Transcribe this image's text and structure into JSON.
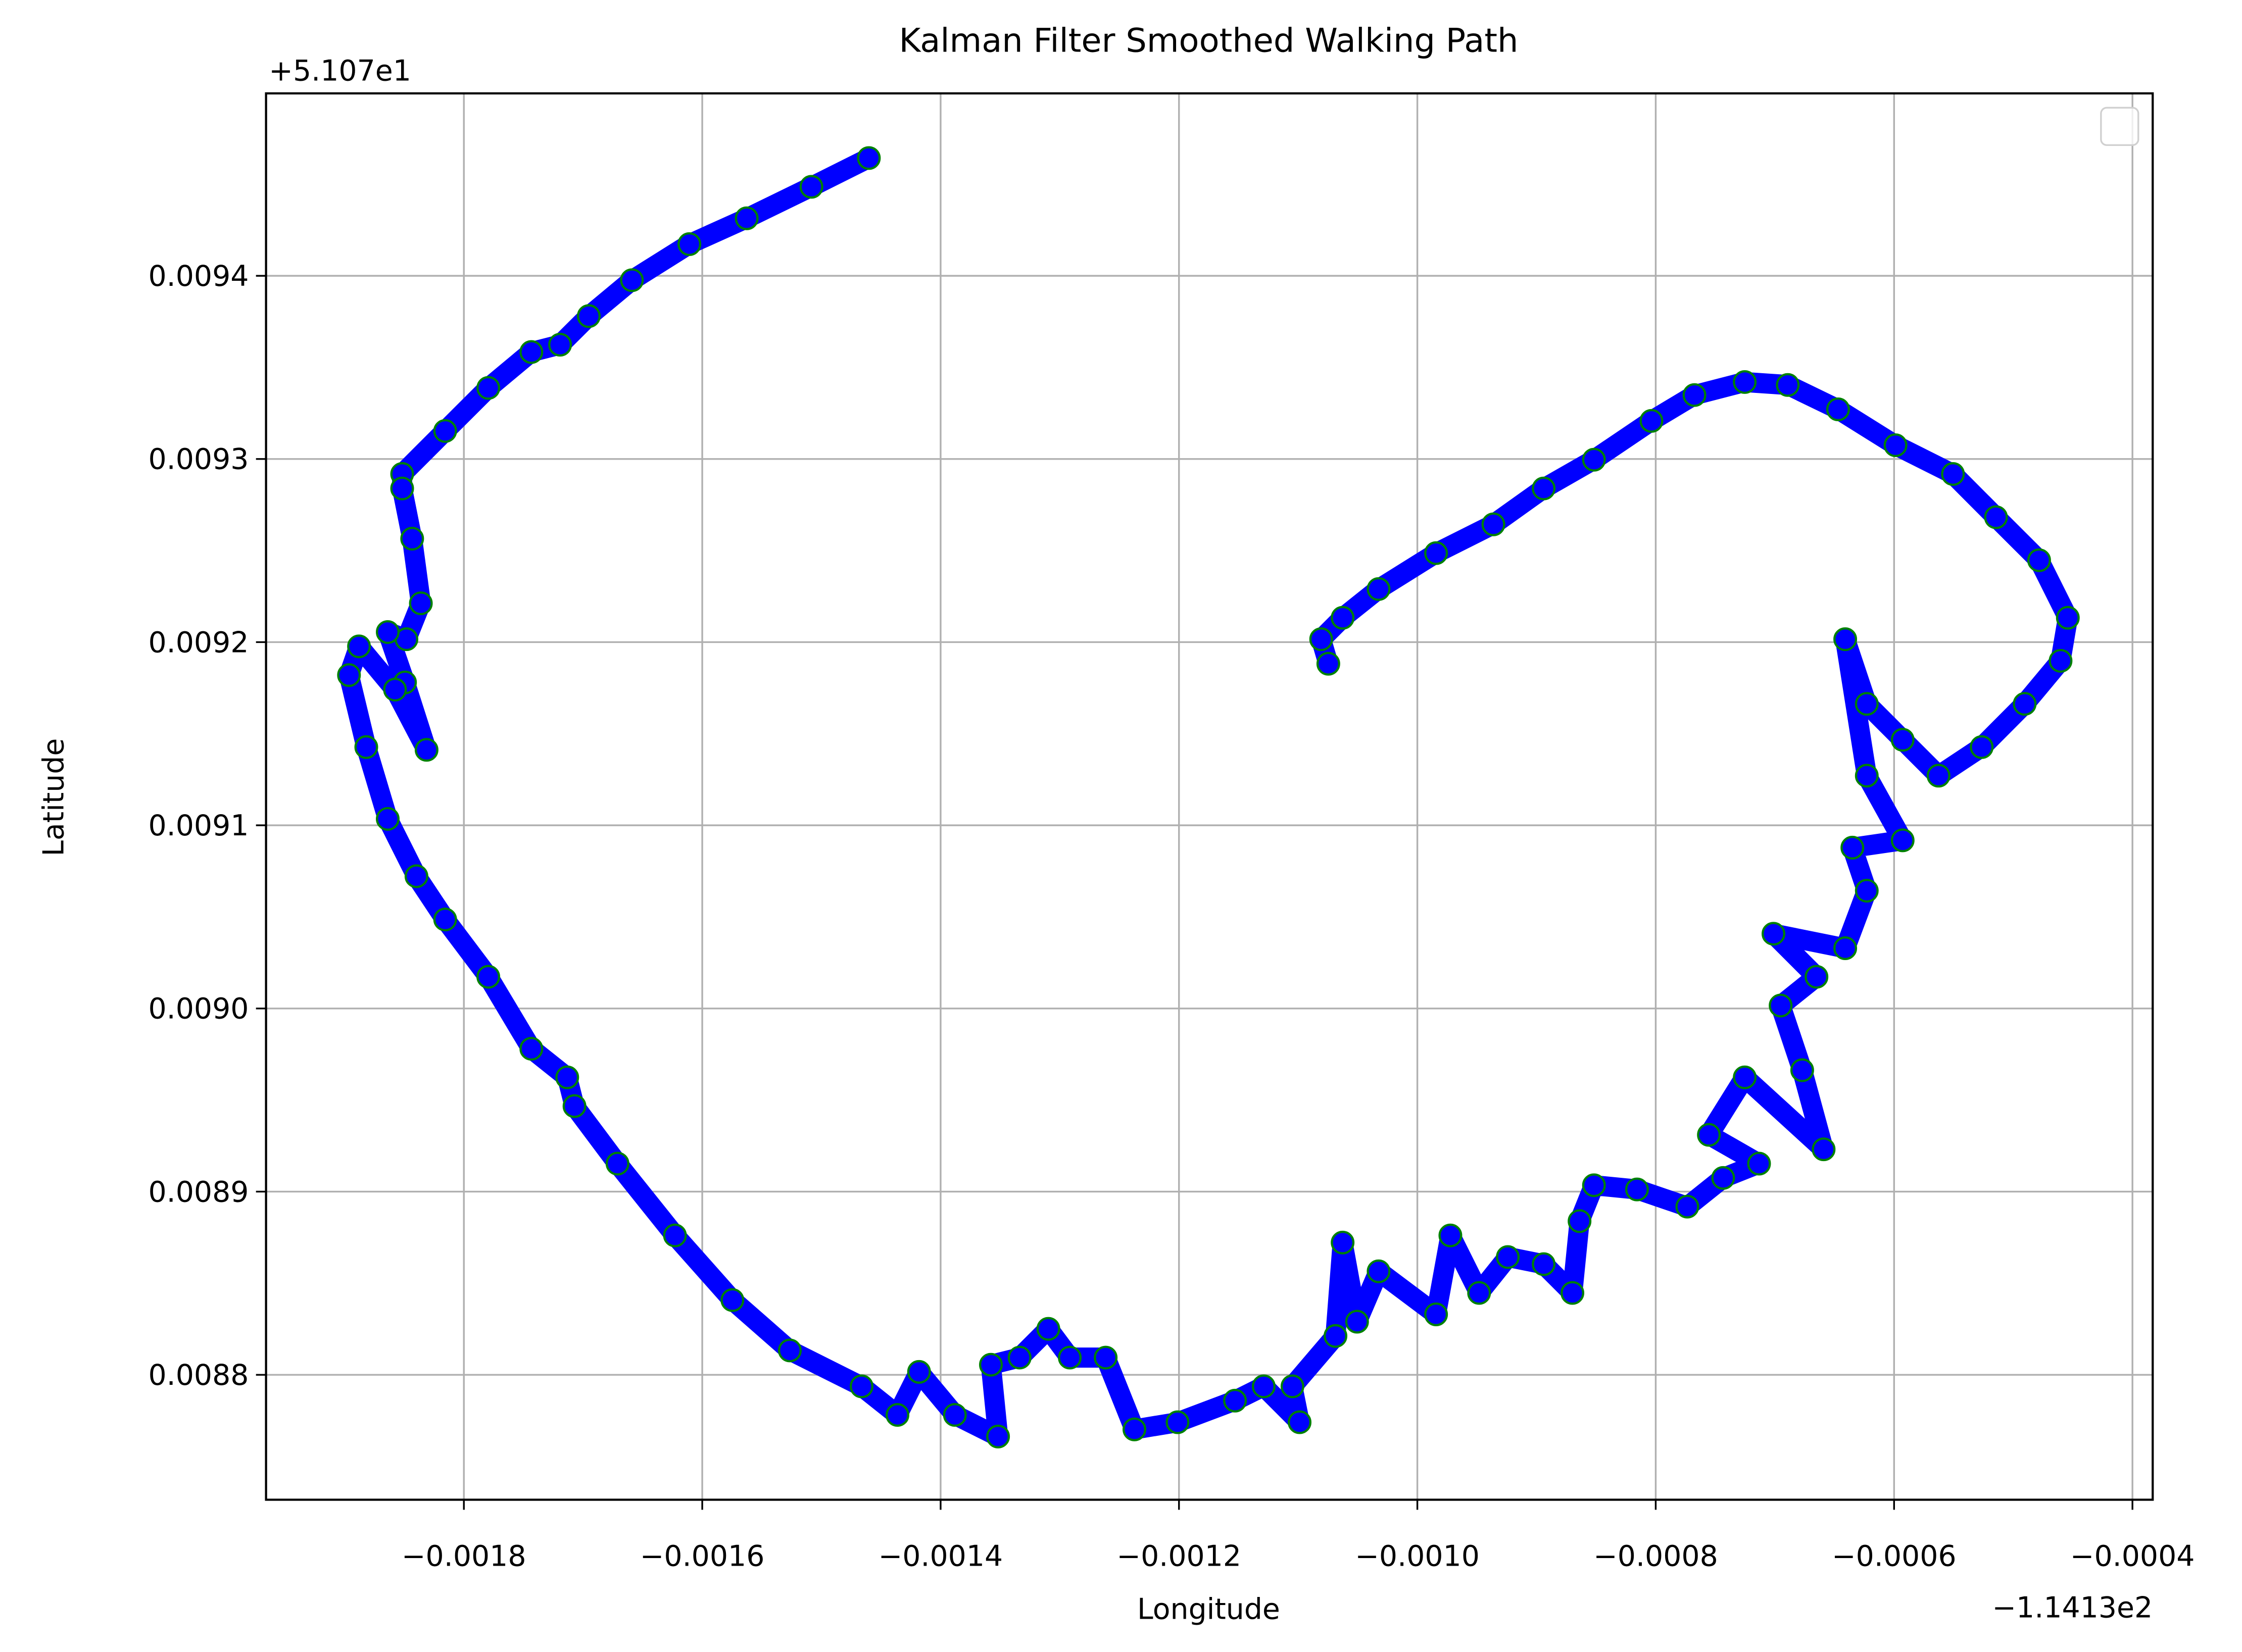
{
  "chart_data": {
    "type": "line",
    "title": "Kalman Filter Smoothed Walking Path",
    "x_label": "Longitude",
    "y_label": "Latitude",
    "x_offset_label": "−1.1413e2",
    "y_offset_label": "+5.107e1",
    "xlim": [
      -0.001966,
      -0.000383
    ],
    "ylim": [
      0.0087318,
      0.0094996
    ],
    "xticks": [
      {
        "value": -0.0018,
        "label": "−0.0018"
      },
      {
        "value": -0.0016,
        "label": "−0.0016"
      },
      {
        "value": -0.0014,
        "label": "−0.0014"
      },
      {
        "value": -0.0012,
        "label": "−0.0012"
      },
      {
        "value": -0.001,
        "label": "−0.0010"
      },
      {
        "value": -0.0008,
        "label": "−0.0008"
      },
      {
        "value": -0.0006,
        "label": "−0.0006"
      },
      {
        "value": -0.0004,
        "label": "−0.0004"
      }
    ],
    "yticks": [
      0.0088,
      0.0089,
      {
        "value": 0.009,
        "label": "0.0090"
      },
      0.0091,
      0.0092,
      0.0093,
      0.0094
    ],
    "grid": true,
    "legend": "upper right",
    "series": [
      {
        "color": "blue",
        "marker_edge_color": "green",
        "x": [
          -0.0014602,
          -0.0015084,
          -0.0015627,
          -0.0016108,
          -0.001659,
          -0.0016952,
          -0.0017193,
          -0.0017434,
          -0.0017795,
          -0.0018157,
          -0.0018518,
          -0.0018518,
          -0.0018434,
          -0.0018361,
          -0.0018482,
          -0.0018639,
          -0.0018494,
          -0.0018313,
          -0.0018578,
          -0.001888,
          -0.0018964,
          -0.0018819,
          -0.0018639,
          -0.0018398,
          -0.0018157,
          -0.0017795,
          -0.0017434,
          -0.0017133,
          -0.0017072,
          -0.0016711,
          -0.0016229,
          -0.0015747,
          -0.0015265,
          -0.0014663,
          -0.0014362,
          -0.0014181,
          -0.001388,
          -0.0013518,
          -0.0013578,
          -0.0013337,
          -0.0013096,
          -0.0012916,
          -0.0012615,
          -0.0012374,
          -0.0012012,
          -0.001153,
          -0.0011289,
          -0.0010988,
          -0.0011048,
          -0.0010687,
          -0.0010627,
          -0.0010506,
          -0.0010325,
          -0.0009843,
          -0.0009723,
          -0.0009482,
          -0.0009241,
          -0.000894,
          -0.0008699,
          -0.0008639,
          -0.0008518,
          -0.0008157,
          -0.0007735,
          -0.0007434,
          -0.0007133,
          -0.0007554,
          -0.0007253,
          -0.0006591,
          -0.0006771,
          -0.0006952,
          -0.0006651,
          -0.0007012,
          -0.000641,
          -0.0006229,
          -0.000635,
          -0.0005928,
          -0.0006229,
          -0.000641,
          -0.0006229,
          -0.0005928,
          -0.0005627,
          -0.0005265,
          -0.0004904,
          -0.0004603,
          -0.0004542,
          -0.0004783,
          -0.0005145,
          -0.0005506,
          -0.0005988,
          -0.000647,
          -0.0006892,
          -0.0007253,
          -0.0007675,
          -0.0008036,
          -0.0008518,
          -0.000894,
          -0.0009362,
          -0.0009843,
          -0.0010325,
          -0.0010627,
          -0.0010807,
          -0.0010747
        ],
        "values": [
          0.0094643,
          0.0094486,
          0.0094314,
          0.0094173,
          0.0093976,
          0.009378,
          0.0093624,
          0.0093584,
          0.0093388,
          0.0093153,
          0.0092918,
          0.0092839,
          0.0092565,
          0.0092212,
          0.0092016,
          0.0092055,
          0.009178,
          0.0091412,
          0.0091741,
          0.0091977,
          0.009182,
          0.0091427,
          0.0091035,
          0.0090722,
          0.0090486,
          0.0090173,
          0.008978,
          0.0089624,
          0.0089467,
          0.0089153,
          0.0088761,
          0.0088408,
          0.0088133,
          0.0087937,
          0.0087781,
          0.0088016,
          0.0087781,
          0.0087663,
          0.0088055,
          0.0088094,
          0.0088251,
          0.0088094,
          0.0088094,
          0.0087702,
          0.0087741,
          0.0087859,
          0.0087937,
          0.0087741,
          0.0087937,
          0.0088212,
          0.0088722,
          0.008829,
          0.0088565,
          0.008833,
          0.0088761,
          0.0088447,
          0.0088643,
          0.0088604,
          0.0088447,
          0.0088839,
          0.0089035,
          0.0089012,
          0.0088918,
          0.0089075,
          0.0089153,
          0.008931,
          0.0089624,
          0.0089231,
          0.0089663,
          0.0090016,
          0.0090173,
          0.0090408,
          0.0090329,
          0.0090643,
          0.0090878,
          0.0090918,
          0.0091271,
          0.0092016,
          0.0091663,
          0.0091467,
          0.0091271,
          0.0091427,
          0.0091663,
          0.0091898,
          0.0092133,
          0.0092447,
          0.0092682,
          0.0092918,
          0.0093075,
          0.0093271,
          0.0093404,
          0.009342,
          0.0093349,
          0.0093208,
          0.0092996,
          0.0092839,
          0.0092643,
          0.0092486,
          0.009229,
          0.0092133,
          0.0092016,
          0.0091882
        ]
      }
    ]
  }
}
